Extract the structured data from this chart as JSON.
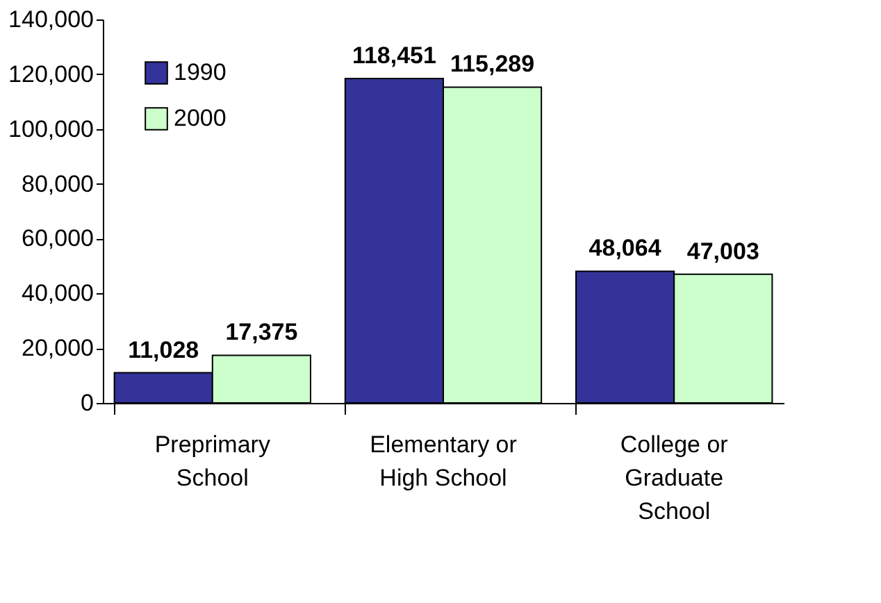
{
  "chart_data": {
    "type": "bar",
    "categories": [
      "Preprimary\nSchool",
      "Elementary or\nHigh School",
      "College or\nGraduate\nSchool"
    ],
    "series": [
      {
        "name": "1990",
        "color": "#333399",
        "values": [
          11028,
          118451,
          48064
        ],
        "value_labels": [
          "11,028",
          "118,451",
          "48,064"
        ]
      },
      {
        "name": "2000",
        "color": "#ccffcc",
        "values": [
          17375,
          115289,
          47003
        ],
        "value_labels": [
          "17,375",
          "115,289",
          "47,003"
        ]
      }
    ],
    "ylim": [
      0,
      140000
    ],
    "yticks": [
      0,
      {
        "value": 20000,
        "label": "20,000"
      },
      {
        "value": 40000,
        "label": "40,000"
      },
      {
        "value": 60000,
        "label": "60,000"
      },
      {
        "value": 80000,
        "label": "80,000"
      },
      {
        "value": 100000,
        "label": "100,000"
      },
      {
        "value": 120000,
        "label": "120,000"
      },
      {
        "value": 140000,
        "label": "140,000"
      }
    ],
    "grid": false,
    "legend": "top left"
  }
}
